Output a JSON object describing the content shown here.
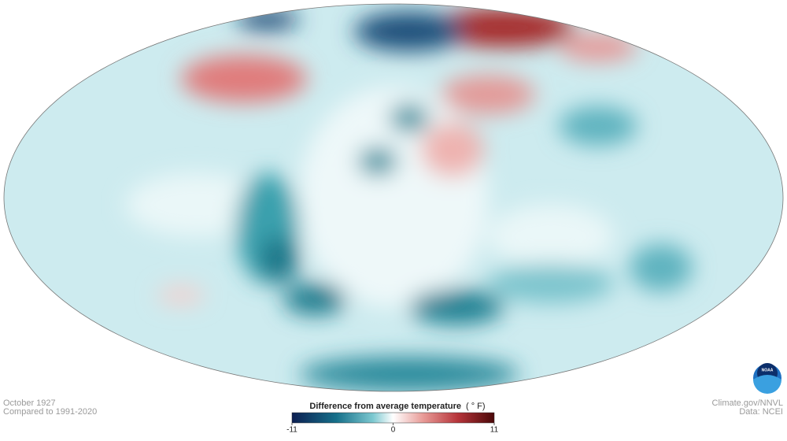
{
  "caption": {
    "date": "October 1927",
    "baseline": "Compared to 1991-2020"
  },
  "legend": {
    "title": "Difference from average temperature",
    "unit": "( ° F)",
    "ticks": [
      -11,
      0,
      11
    ]
  },
  "credits": {
    "source": "Climate.gov/NNVL",
    "data": "Data: NCEI"
  },
  "logo": {
    "text": "NOAA"
  }
}
